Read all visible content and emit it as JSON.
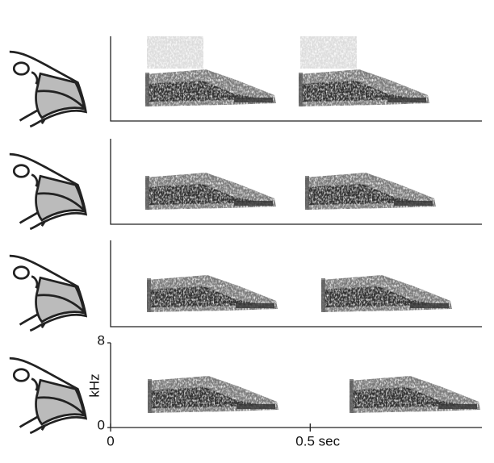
{
  "chart_data": {
    "type": "spectrogram",
    "ylabel": "kHz",
    "xlim": [
      0,
      0.93
    ],
    "xticks": [
      0,
      {
        "value": 0.5,
        "label": "0.5 sec"
      }
    ],
    "ylim": [
      0,
      8
    ],
    "yticks": [
      0,
      8
    ]
  }
}
